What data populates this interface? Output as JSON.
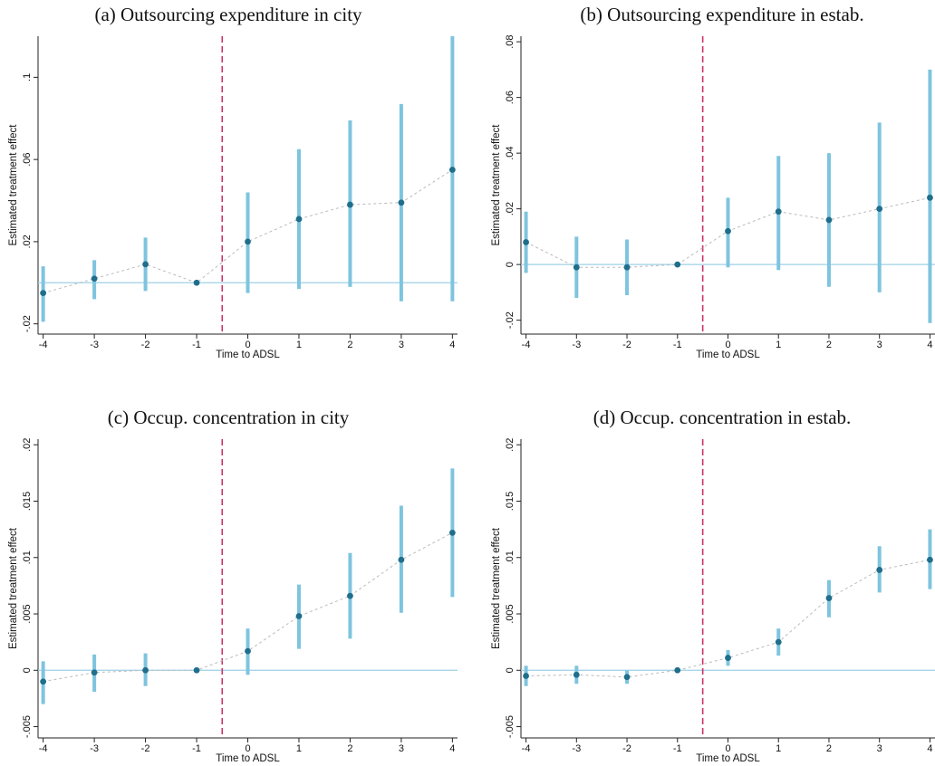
{
  "chart_data": [
    {
      "type": "scatter",
      "title": "(a) Outsourcing expenditure in city",
      "xlabel": "Time to ADSL",
      "ylabel": "Estimated treatment effect",
      "x": [
        -4,
        -3,
        -2,
        -1,
        0,
        1,
        2,
        3,
        4
      ],
      "x_ticks": [
        "-4",
        "-3",
        "-2",
        "-1",
        "0",
        "1",
        "2",
        "3",
        "4"
      ],
      "y_ticks": [
        -0.02,
        0.02,
        0.06,
        0.1
      ],
      "y_tick_labels": [
        "-.02",
        ".02",
        ".06",
        ".1"
      ],
      "ylim": [
        -0.025,
        0.12
      ],
      "estimate": [
        -0.005,
        0.002,
        0.009,
        0.0,
        0.02,
        0.031,
        0.038,
        0.039,
        0.055
      ],
      "ci_low": [
        -0.019,
        -0.008,
        -0.004,
        0.0,
        -0.005,
        -0.003,
        -0.002,
        -0.009,
        -0.009
      ],
      "ci_high": [
        0.008,
        0.011,
        0.022,
        0.0,
        0.044,
        0.065,
        0.079,
        0.087,
        0.12
      ],
      "reference_hline": 0,
      "treatment_vline": -0.5,
      "colors": {
        "ci": "#7ec4df",
        "point": "#1f6e8c",
        "connector": "#bbbbbb",
        "hline": "#9ed0e6",
        "vline": "#cc3366"
      }
    },
    {
      "type": "scatter",
      "title": "(b) Outsourcing expenditure in estab.",
      "xlabel": "Time to ADSL",
      "ylabel": "Estimated treatment effect",
      "x": [
        -4,
        -3,
        -2,
        -1,
        0,
        1,
        2,
        3,
        4
      ],
      "x_ticks": [
        "-4",
        "-3",
        "-2",
        "-1",
        "0",
        "1",
        "2",
        "3",
        "4"
      ],
      "y_ticks": [
        -0.02,
        0,
        0.02,
        0.04,
        0.06,
        0.08
      ],
      "y_tick_labels": [
        "-.02",
        "0",
        ".02",
        ".04",
        ".06",
        ".08"
      ],
      "ylim": [
        -0.025,
        0.082
      ],
      "estimate": [
        0.008,
        -0.001,
        -0.001,
        0.0,
        0.012,
        0.019,
        0.016,
        0.02,
        0.024
      ],
      "ci_low": [
        -0.003,
        -0.012,
        -0.011,
        0.0,
        -0.001,
        -0.002,
        -0.008,
        -0.01,
        -0.021
      ],
      "ci_high": [
        0.019,
        0.01,
        0.009,
        0.0,
        0.024,
        0.039,
        0.04,
        0.051,
        0.07
      ],
      "reference_hline": 0,
      "treatment_vline": -0.5,
      "colors": {
        "ci": "#7ec4df",
        "point": "#1f6e8c",
        "connector": "#bbbbbb",
        "hline": "#9ed0e6",
        "vline": "#cc3366"
      }
    },
    {
      "type": "scatter",
      "title": "(c) Occup. concentration in city",
      "xlabel": "Time to ADSL",
      "ylabel": "Estimated treatment effect",
      "x": [
        -4,
        -3,
        -2,
        -1,
        0,
        1,
        2,
        3,
        4
      ],
      "x_ticks": [
        "-4",
        "-3",
        "-2",
        "-1",
        "0",
        "1",
        "2",
        "3",
        "4"
      ],
      "y_ticks": [
        -0.005,
        0,
        0.005,
        0.01,
        0.015,
        0.02
      ],
      "y_tick_labels": [
        "-.005",
        "0",
        ".005",
        ".01",
        ".015",
        ".02"
      ],
      "ylim": [
        -0.006,
        0.0205
      ],
      "estimate": [
        -0.001,
        -0.0002,
        0.0,
        0.0,
        0.0017,
        0.0048,
        0.0066,
        0.0098,
        0.0122
      ],
      "ci_low": [
        -0.003,
        -0.0019,
        -0.0014,
        0.0,
        -0.0004,
        0.0019,
        0.0028,
        0.0051,
        0.0065
      ],
      "ci_high": [
        0.0008,
        0.0014,
        0.0015,
        0.0,
        0.0037,
        0.0076,
        0.0104,
        0.0146,
        0.0179
      ],
      "reference_hline": 0,
      "treatment_vline": -0.5,
      "colors": {
        "ci": "#7ec4df",
        "point": "#1f6e8c",
        "connector": "#bbbbbb",
        "hline": "#9ed0e6",
        "vline": "#cc3366"
      }
    },
    {
      "type": "scatter",
      "title": "(d) Occup. concentration in estab.",
      "xlabel": "Time to ADSL",
      "ylabel": "Estimated treatment effect",
      "x": [
        -4,
        -3,
        -2,
        -1,
        0,
        1,
        2,
        3,
        4
      ],
      "x_ticks": [
        "-4",
        "-3",
        "-2",
        "-1",
        "0",
        "1",
        "2",
        "3",
        "4"
      ],
      "y_ticks": [
        -0.005,
        0,
        0.005,
        0.01,
        0.015,
        0.02
      ],
      "y_tick_labels": [
        "-.005",
        "0",
        ".005",
        ".01",
        ".015",
        ".02"
      ],
      "ylim": [
        -0.006,
        0.0205
      ],
      "estimate": [
        -0.0005,
        -0.0004,
        -0.0006,
        0.0,
        0.0011,
        0.0025,
        0.0064,
        0.0089,
        0.0098
      ],
      "ci_low": [
        -0.0014,
        -0.0012,
        -0.0012,
        0.0,
        0.0004,
        0.0013,
        0.0047,
        0.0069,
        0.0072
      ],
      "ci_high": [
        0.0004,
        0.0004,
        0.0,
        0.0,
        0.0018,
        0.0037,
        0.008,
        0.011,
        0.0125
      ],
      "reference_hline": 0,
      "treatment_vline": -0.5,
      "colors": {
        "ci": "#7ec4df",
        "point": "#1f6e8c",
        "connector": "#bbbbbb",
        "hline": "#9ed0e6",
        "vline": "#cc3366"
      }
    }
  ]
}
